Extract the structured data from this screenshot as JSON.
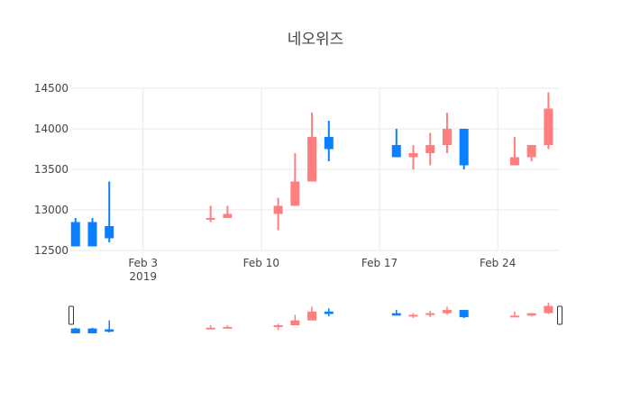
{
  "chart_data": {
    "type": "candlestick",
    "title": "네오위즈",
    "colors": {
      "increasing": "#ff7f7f",
      "decreasing": "#0a7fff",
      "grid": "#e9e9e9",
      "text": "#444444"
    },
    "ylim": [
      12500,
      14500
    ],
    "y_ticks": [
      12500,
      13000,
      13500,
      14000,
      14500
    ],
    "x_ticks": [
      {
        "date": "2019-02-03",
        "label": "Feb 3",
        "sublabel": "2019"
      },
      {
        "date": "2019-02-10",
        "label": "Feb 10",
        "sublabel": ""
      },
      {
        "date": "2019-02-17",
        "label": "Feb 17",
        "sublabel": ""
      },
      {
        "date": "2019-02-24",
        "label": "Feb 24",
        "sublabel": ""
      }
    ],
    "candles": [
      {
        "date": "2019-01-30",
        "open": 12850,
        "high": 12900,
        "low": 12550,
        "close": 12550
      },
      {
        "date": "2019-01-31",
        "open": 12850,
        "high": 12900,
        "low": 12550,
        "close": 12550
      },
      {
        "date": "2019-02-01",
        "open": 12800,
        "high": 13350,
        "low": 12600,
        "close": 12650
      },
      {
        "date": "2019-02-07",
        "open": 12900,
        "high": 13050,
        "low": 12850,
        "close": 12900
      },
      {
        "date": "2019-02-08",
        "open": 12900,
        "high": 13050,
        "low": 12900,
        "close": 12950
      },
      {
        "date": "2019-02-11",
        "open": 12950,
        "high": 13150,
        "low": 12750,
        "close": 13050
      },
      {
        "date": "2019-02-12",
        "open": 13050,
        "high": 13700,
        "low": 13050,
        "close": 13350
      },
      {
        "date": "2019-02-13",
        "open": 13350,
        "high": 14200,
        "low": 13350,
        "close": 13900
      },
      {
        "date": "2019-02-14",
        "open": 13900,
        "high": 14100,
        "low": 13600,
        "close": 13750
      },
      {
        "date": "2019-02-18",
        "open": 13800,
        "high": 14000,
        "low": 13650,
        "close": 13650
      },
      {
        "date": "2019-02-19",
        "open": 13650,
        "high": 13800,
        "low": 13500,
        "close": 13700
      },
      {
        "date": "2019-02-20",
        "open": 13700,
        "high": 13950,
        "low": 13550,
        "close": 13800
      },
      {
        "date": "2019-02-21",
        "open": 13800,
        "high": 14200,
        "low": 13700,
        "close": 14000
      },
      {
        "date": "2019-02-22",
        "open": 14000,
        "high": 14000,
        "low": 13500,
        "close": 13550
      },
      {
        "date": "2019-02-25",
        "open": 13550,
        "high": 13900,
        "low": 13550,
        "close": 13650
      },
      {
        "date": "2019-02-26",
        "open": 13650,
        "high": 13800,
        "low": 13600,
        "close": 13800
      },
      {
        "date": "2019-02-27",
        "open": 13800,
        "high": 14450,
        "low": 13750,
        "close": 14250
      }
    ]
  }
}
